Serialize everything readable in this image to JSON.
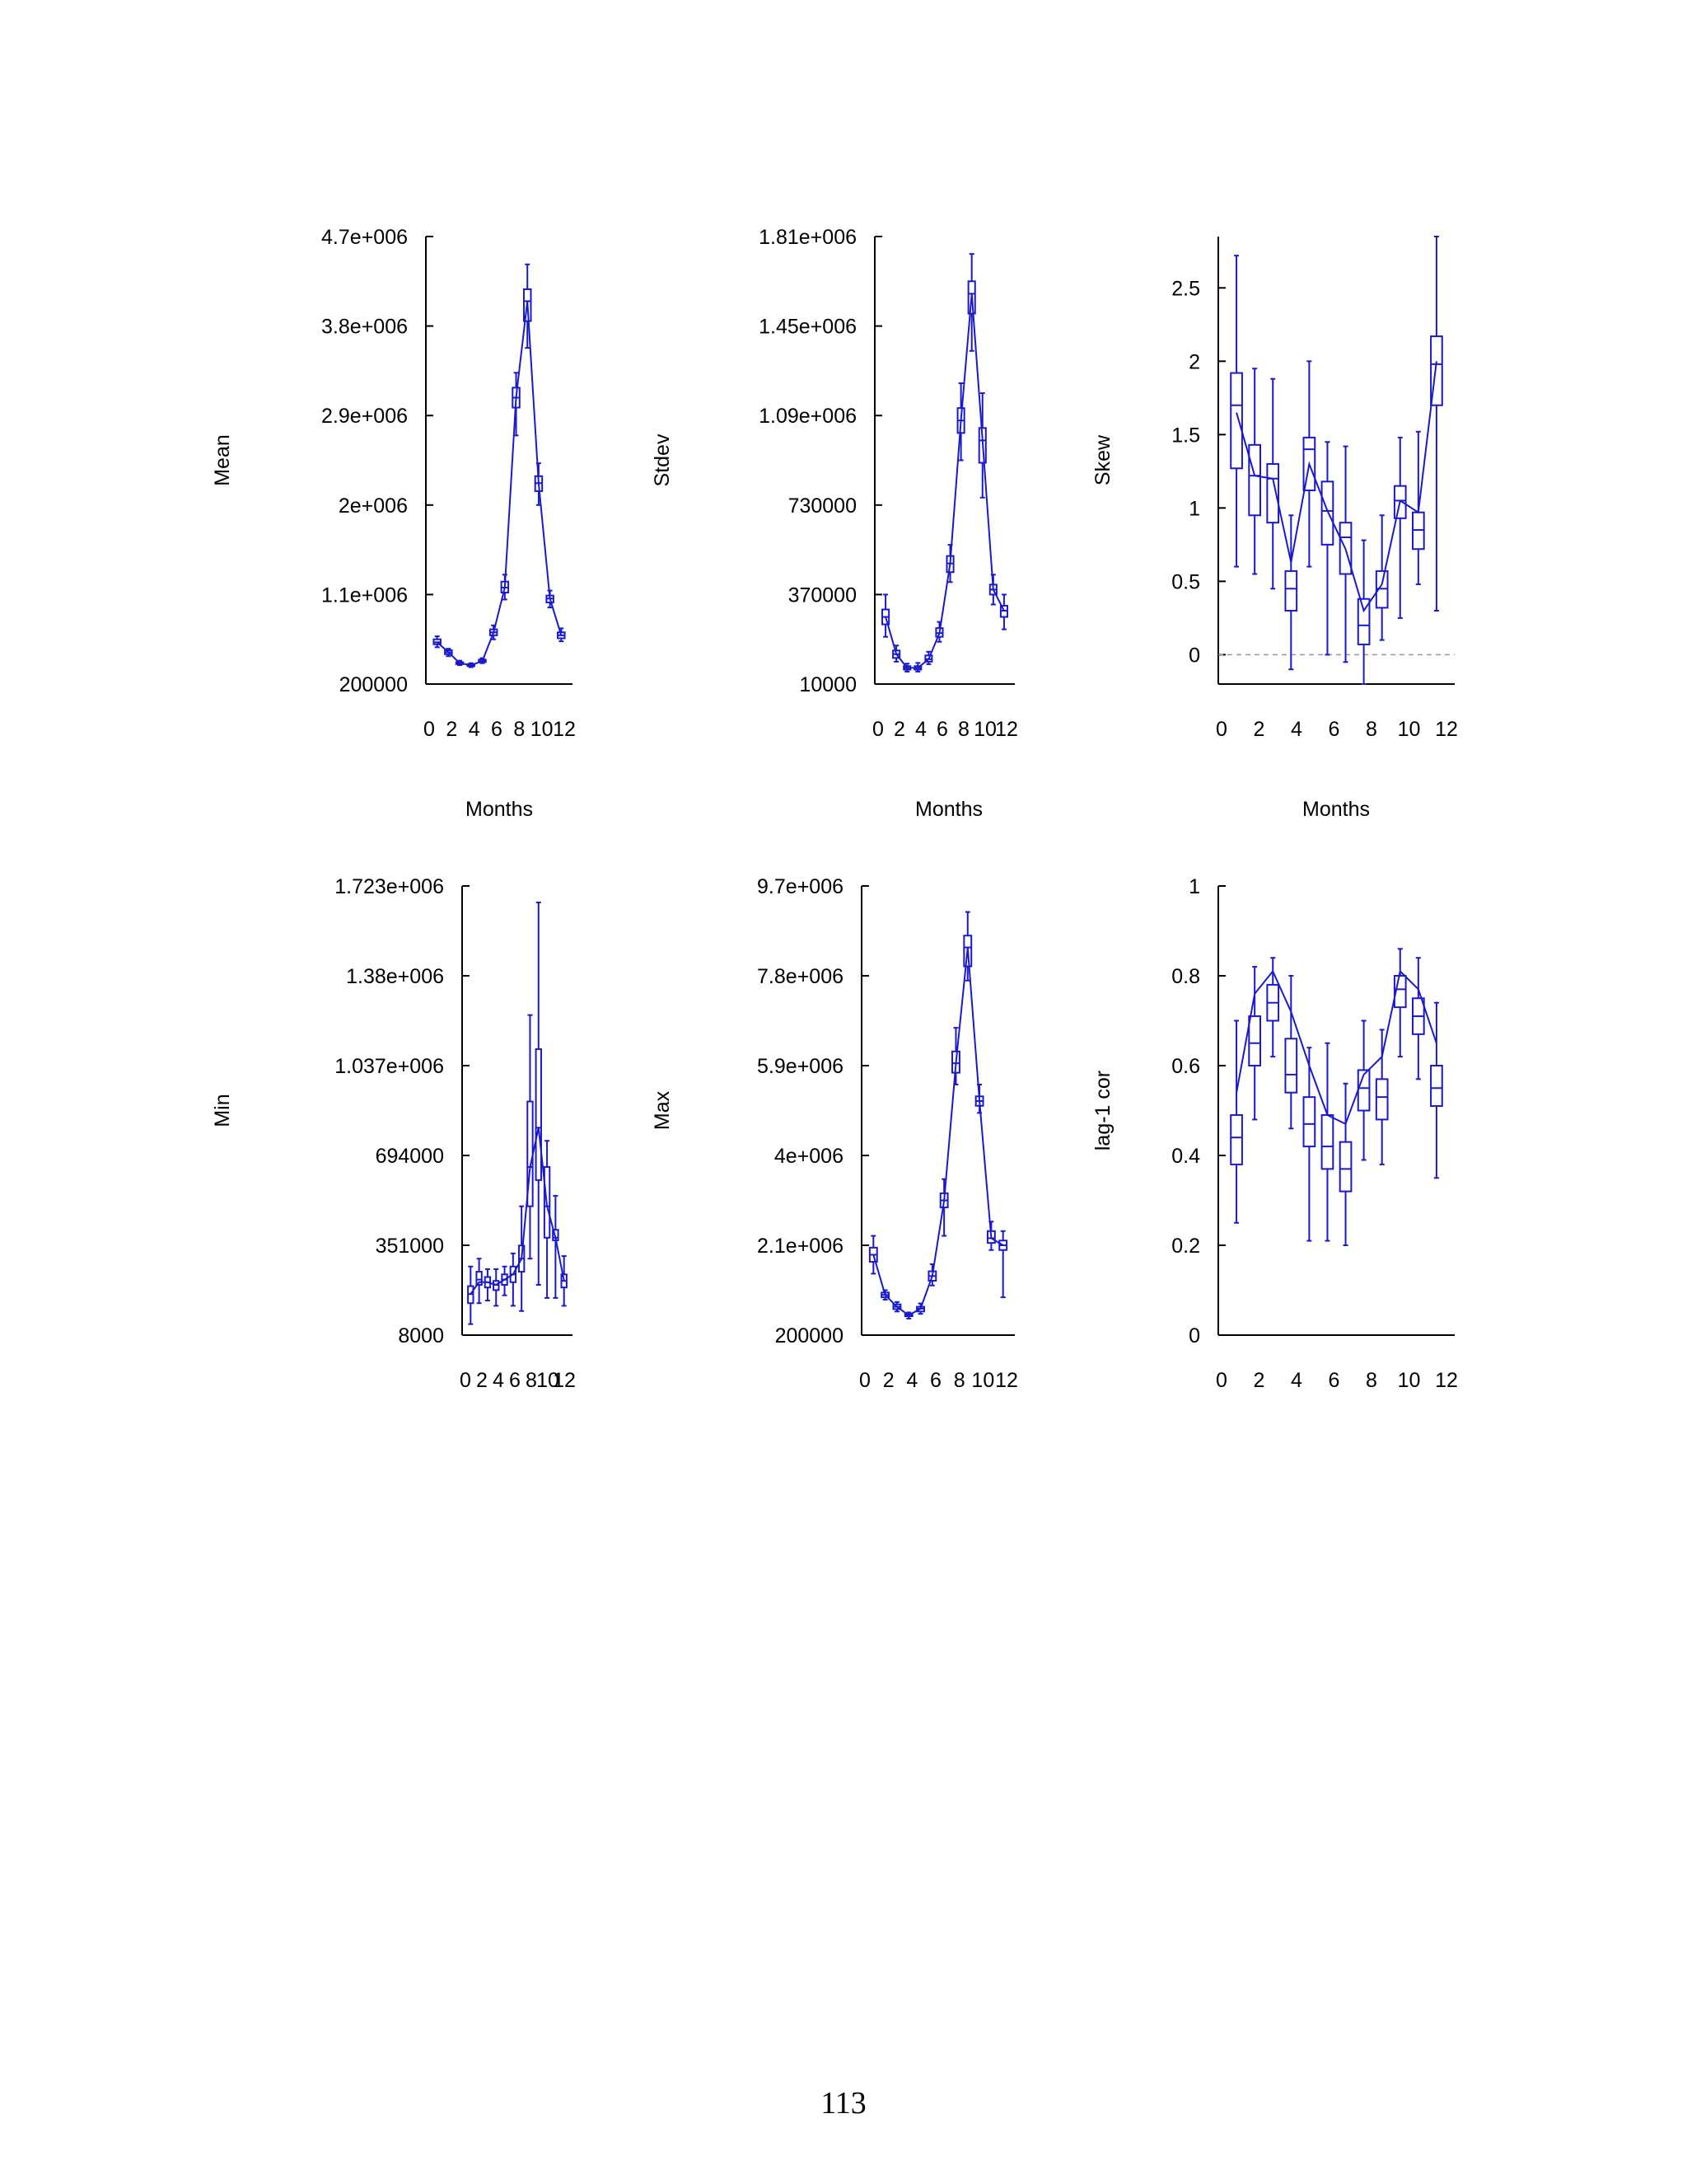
{
  "page": {
    "number": "113"
  },
  "chart_data": [
    {
      "type": "box",
      "ylabel": "Mean",
      "xlabel": "Months",
      "x_ticks": [
        "0",
        "2",
        "4",
        "6",
        "8",
        "10",
        "12"
      ],
      "xlim": [
        0,
        13
      ],
      "y_ticks": [
        "200000",
        "1.1e+006",
        "2e+006",
        "2.9e+006",
        "3.8e+006",
        "4.7e+006"
      ],
      "ylim": [
        200000,
        4700000
      ],
      "months": [
        1,
        2,
        3,
        4,
        5,
        6,
        7,
        8,
        9,
        10,
        11,
        12
      ],
      "box_color": "#1a1acc",
      "boxes": [
        {
          "whislo": 570000,
          "q1": 600000,
          "med": 620000,
          "q3": 650000,
          "whishi": 680000
        },
        {
          "whislo": 480000,
          "q1": 500000,
          "med": 520000,
          "q3": 540000,
          "whishi": 555000
        },
        {
          "whislo": 390000,
          "q1": 400000,
          "med": 410000,
          "q3": 420000,
          "whishi": 435000
        },
        {
          "whislo": 370000,
          "q1": 380000,
          "med": 390000,
          "q3": 400000,
          "whishi": 410000
        },
        {
          "whislo": 410000,
          "q1": 420000,
          "med": 430000,
          "q3": 445000,
          "whishi": 460000
        },
        {
          "whislo": 650000,
          "q1": 690000,
          "med": 720000,
          "q3": 750000,
          "whishi": 790000
        },
        {
          "whislo": 1050000,
          "q1": 1120000,
          "med": 1170000,
          "q3": 1230000,
          "whishi": 1300000
        },
        {
          "whislo": 2700000,
          "q1": 2980000,
          "med": 3080000,
          "q3": 3180000,
          "whishi": 3330000
        },
        {
          "whislo": 3580000,
          "q1": 3850000,
          "med": 4050000,
          "q3": 4170000,
          "whishi": 4420000
        },
        {
          "whislo": 2000000,
          "q1": 2140000,
          "med": 2220000,
          "q3": 2290000,
          "whishi": 2420000
        },
        {
          "whislo": 970000,
          "q1": 1020000,
          "med": 1060000,
          "q3": 1090000,
          "whishi": 1140000
        },
        {
          "whislo": 630000,
          "q1": 660000,
          "med": 690000,
          "q3": 720000,
          "whishi": 760000
        }
      ],
      "line": [
        620000,
        520000,
        410000,
        390000,
        430000,
        720000,
        1170000,
        3080000,
        4050000,
        2220000,
        1060000,
        690000
      ]
    },
    {
      "type": "box",
      "ylabel": "Stdev",
      "xlabel": "Months",
      "x_ticks": [
        "0",
        "2",
        "4",
        "6",
        "8",
        "10",
        "12"
      ],
      "xlim": [
        0,
        13
      ],
      "y_ticks": [
        "10000",
        "370000",
        "730000",
        "1.09e+006",
        "1.45e+006",
        "1.81e+006"
      ],
      "ylim": [
        10000,
        1810000
      ],
      "months": [
        1,
        2,
        3,
        4,
        5,
        6,
        7,
        8,
        9,
        10,
        11,
        12
      ],
      "box_color": "#1a1acc",
      "boxes": [
        {
          "whislo": 200000,
          "q1": 250000,
          "med": 280000,
          "q3": 310000,
          "whishi": 370000
        },
        {
          "whislo": 100000,
          "q1": 115000,
          "med": 130000,
          "q3": 145000,
          "whishi": 165000
        },
        {
          "whislo": 60000,
          "q1": 68000,
          "med": 75000,
          "q3": 82000,
          "whishi": 92000
        },
        {
          "whislo": 60000,
          "q1": 68000,
          "med": 75000,
          "q3": 82000,
          "whishi": 95000
        },
        {
          "whislo": 90000,
          "q1": 100000,
          "med": 110000,
          "q3": 125000,
          "whishi": 140000
        },
        {
          "whislo": 180000,
          "q1": 200000,
          "med": 215000,
          "q3": 235000,
          "whishi": 260000
        },
        {
          "whislo": 420000,
          "q1": 460000,
          "med": 495000,
          "q3": 525000,
          "whishi": 570000
        },
        {
          "whislo": 910000,
          "q1": 1020000,
          "med": 1070000,
          "q3": 1120000,
          "whishi": 1220000
        },
        {
          "whislo": 1350000,
          "q1": 1500000,
          "med": 1580000,
          "q3": 1630000,
          "whishi": 1740000
        },
        {
          "whislo": 760000,
          "q1": 900000,
          "med": 990000,
          "q3": 1040000,
          "whishi": 1180000
        },
        {
          "whislo": 330000,
          "q1": 370000,
          "med": 390000,
          "q3": 410000,
          "whishi": 450000
        },
        {
          "whislo": 230000,
          "q1": 280000,
          "med": 305000,
          "q3": 325000,
          "whishi": 370000
        }
      ],
      "line": [
        280000,
        130000,
        75000,
        75000,
        110000,
        215000,
        495000,
        1070000,
        1580000,
        990000,
        390000,
        305000
      ]
    },
    {
      "type": "box",
      "ylabel": "Skew",
      "xlabel": "Months",
      "x_ticks": [
        "0",
        "2",
        "4",
        "6",
        "8",
        "10",
        "12"
      ],
      "xlim": [
        0,
        13
      ],
      "y_ticks": [
        "0",
        "0.5",
        "1",
        "1.5",
        "2",
        "2.5"
      ],
      "ylim": [
        -0.2,
        2.85
      ],
      "months": [
        1,
        2,
        3,
        4,
        5,
        6,
        7,
        8,
        9,
        10,
        11,
        12
      ],
      "box_color": "#1a1acc",
      "reference_line": 0,
      "boxes": [
        {
          "whislo": 0.6,
          "q1": 1.27,
          "med": 1.7,
          "q3": 1.92,
          "whishi": 2.72
        },
        {
          "whislo": 0.55,
          "q1": 0.95,
          "med": 1.22,
          "q3": 1.43,
          "whishi": 1.95
        },
        {
          "whislo": 0.45,
          "q1": 0.9,
          "med": 1.2,
          "q3": 1.3,
          "whishi": 1.88
        },
        {
          "whislo": -0.1,
          "q1": 0.3,
          "med": 0.45,
          "q3": 0.57,
          "whishi": 0.95
        },
        {
          "whislo": 0.6,
          "q1": 1.12,
          "med": 1.4,
          "q3": 1.48,
          "whishi": 2.0
        },
        {
          "whislo": 0.0,
          "q1": 0.75,
          "med": 0.98,
          "q3": 1.18,
          "whishi": 1.45
        },
        {
          "whislo": -0.05,
          "q1": 0.55,
          "med": 0.8,
          "q3": 0.9,
          "whishi": 1.42
        },
        {
          "whislo": -0.2,
          "q1": 0.07,
          "med": 0.2,
          "q3": 0.38,
          "whishi": 0.78
        },
        {
          "whislo": 0.1,
          "q1": 0.32,
          "med": 0.45,
          "q3": 0.57,
          "whishi": 0.95
        },
        {
          "whislo": 0.25,
          "q1": 0.93,
          "med": 1.05,
          "q3": 1.15,
          "whishi": 1.48
        },
        {
          "whislo": 0.48,
          "q1": 0.72,
          "med": 0.85,
          "q3": 0.97,
          "whishi": 1.52
        },
        {
          "whislo": 0.3,
          "q1": 1.7,
          "med": 1.98,
          "q3": 2.17,
          "whishi": 2.85
        }
      ],
      "line": [
        1.65,
        1.22,
        1.2,
        0.63,
        1.3,
        0.98,
        0.72,
        0.3,
        0.48,
        1.05,
        0.97,
        2.0
      ]
    },
    {
      "type": "box",
      "ylabel": "Min",
      "xlabel": "",
      "x_ticks": [
        "0",
        "2",
        "4",
        "6",
        "8",
        "10",
        "12"
      ],
      "xlim": [
        0,
        13
      ],
      "y_ticks": [
        "8000",
        "351000",
        "694000",
        "1.037e+006",
        "1.38e+006",
        "1.723e+006"
      ],
      "ylim": [
        8000,
        1723000
      ],
      "months": [
        1,
        2,
        3,
        4,
        5,
        6,
        7,
        8,
        9,
        10,
        11,
        12
      ],
      "box_color": "#1a1acc",
      "boxes": [
        {
          "whislo": 50000,
          "q1": 130000,
          "med": 165000,
          "q3": 195000,
          "whishi": 270000
        },
        {
          "whislo": 130000,
          "q1": 200000,
          "med": 220000,
          "q3": 250000,
          "whishi": 300000
        },
        {
          "whislo": 140000,
          "q1": 190000,
          "med": 210000,
          "q3": 230000,
          "whishi": 260000
        },
        {
          "whislo": 120000,
          "q1": 180000,
          "med": 200000,
          "q3": 215000,
          "whishi": 260000
        },
        {
          "whislo": 160000,
          "q1": 200000,
          "med": 220000,
          "q3": 240000,
          "whishi": 270000
        },
        {
          "whislo": 120000,
          "q1": 210000,
          "med": 240000,
          "q3": 270000,
          "whishi": 320000
        },
        {
          "whislo": 100000,
          "q1": 250000,
          "med": 300000,
          "q3": 350000,
          "whishi": 500000
        },
        {
          "whislo": 300000,
          "q1": 500000,
          "med": 650000,
          "q3": 900000,
          "whishi": 1230000
        },
        {
          "whislo": 200000,
          "q1": 600000,
          "med": 800000,
          "q3": 1100000,
          "whishi": 1660000
        },
        {
          "whislo": 150000,
          "q1": 380000,
          "med": 500000,
          "q3": 650000,
          "whishi": 750000
        },
        {
          "whislo": 150000,
          "q1": 370000,
          "med": 380000,
          "q3": 410000,
          "whishi": 540000
        },
        {
          "whislo": 120000,
          "q1": 190000,
          "med": 215000,
          "q3": 240000,
          "whishi": 310000
        }
      ],
      "line": [
        165000,
        210000,
        210000,
        200000,
        220000,
        240000,
        300000,
        650000,
        800000,
        500000,
        380000,
        215000
      ]
    },
    {
      "type": "box",
      "ylabel": "Max",
      "xlabel": "",
      "x_ticks": [
        "0",
        "2",
        "4",
        "6",
        "8",
        "10",
        "12"
      ],
      "xlim": [
        0,
        13
      ],
      "y_ticks": [
        "200000",
        "2.1e+006",
        "4e+006",
        "5.9e+006",
        "7.8e+006",
        "9.7e+006"
      ],
      "ylim": [
        200000,
        9700000
      ],
      "months": [
        1,
        2,
        3,
        4,
        5,
        6,
        7,
        8,
        9,
        10,
        11,
        12
      ],
      "box_color": "#1a1acc",
      "boxes": [
        {
          "whislo": 1500000,
          "q1": 1750000,
          "med": 1900000,
          "q3": 2050000,
          "whishi": 2300000
        },
        {
          "whislo": 950000,
          "q1": 1000000,
          "med": 1050000,
          "q3": 1100000,
          "whishi": 1150000
        },
        {
          "whislo": 700000,
          "q1": 750000,
          "med": 800000,
          "q3": 850000,
          "whishi": 900000
        },
        {
          "whislo": 550000,
          "q1": 600000,
          "med": 620000,
          "q3": 650000,
          "whishi": 680000
        },
        {
          "whislo": 650000,
          "q1": 700000,
          "med": 760000,
          "q3": 800000,
          "whishi": 870000
        },
        {
          "whislo": 1250000,
          "q1": 1350000,
          "med": 1450000,
          "q3": 1550000,
          "whishi": 1700000
        },
        {
          "whislo": 2300000,
          "q1": 2900000,
          "med": 3050000,
          "q3": 3200000,
          "whishi": 3500000
        },
        {
          "whislo": 5500000,
          "q1": 5750000,
          "med": 5950000,
          "q3": 6200000,
          "whishi": 6700000
        },
        {
          "whislo": 7700000,
          "q1": 8000000,
          "med": 8400000,
          "q3": 8650000,
          "whishi": 9150000
        },
        {
          "whislo": 4900000,
          "q1": 5050000,
          "med": 5150000,
          "q3": 5250000,
          "whishi": 5500000
        },
        {
          "whislo": 2000000,
          "q1": 2150000,
          "med": 2250000,
          "q3": 2400000,
          "whishi": 2600000
        },
        {
          "whislo": 1000000,
          "q1": 2000000,
          "med": 2100000,
          "q3": 2200000,
          "whishi": 2400000
        }
      ],
      "line": [
        1900000,
        1050000,
        800000,
        620000,
        760000,
        1450000,
        3050000,
        5950000,
        8400000,
        5150000,
        2250000,
        2100000
      ]
    },
    {
      "type": "box",
      "ylabel": "lag-1 cor",
      "xlabel": "",
      "x_ticks": [
        "0",
        "2",
        "4",
        "6",
        "8",
        "10",
        "12"
      ],
      "xlim": [
        0,
        13
      ],
      "y_ticks": [
        "0",
        "0.2",
        "0.4",
        "0.6",
        "0.8",
        "1"
      ],
      "ylim": [
        0,
        1
      ],
      "months": [
        1,
        2,
        3,
        4,
        5,
        6,
        7,
        8,
        9,
        10,
        11,
        12
      ],
      "box_color": "#1a1acc",
      "boxes": [
        {
          "whislo": 0.25,
          "q1": 0.38,
          "med": 0.44,
          "q3": 0.49,
          "whishi": 0.7
        },
        {
          "whislo": 0.48,
          "q1": 0.6,
          "med": 0.65,
          "q3": 0.71,
          "whishi": 0.82
        },
        {
          "whislo": 0.62,
          "q1": 0.7,
          "med": 0.74,
          "q3": 0.78,
          "whishi": 0.84
        },
        {
          "whislo": 0.46,
          "q1": 0.54,
          "med": 0.58,
          "q3": 0.66,
          "whishi": 0.8
        },
        {
          "whislo": 0.21,
          "q1": 0.42,
          "med": 0.47,
          "q3": 0.53,
          "whishi": 0.64
        },
        {
          "whislo": 0.21,
          "q1": 0.37,
          "med": 0.42,
          "q3": 0.49,
          "whishi": 0.65
        },
        {
          "whislo": 0.2,
          "q1": 0.32,
          "med": 0.37,
          "q3": 0.43,
          "whishi": 0.56
        },
        {
          "whislo": 0.39,
          "q1": 0.5,
          "med": 0.55,
          "q3": 0.59,
          "whishi": 0.7
        },
        {
          "whislo": 0.38,
          "q1": 0.48,
          "med": 0.53,
          "q3": 0.57,
          "whishi": 0.68
        },
        {
          "whislo": 0.62,
          "q1": 0.73,
          "med": 0.77,
          "q3": 0.8,
          "whishi": 0.86
        },
        {
          "whislo": 0.57,
          "q1": 0.67,
          "med": 0.71,
          "q3": 0.75,
          "whishi": 0.84
        },
        {
          "whislo": 0.35,
          "q1": 0.51,
          "med": 0.55,
          "q3": 0.6,
          "whishi": 0.74
        }
      ],
      "line": [
        0.54,
        0.76,
        0.81,
        0.72,
        0.6,
        0.49,
        0.47,
        0.58,
        0.62,
        0.81,
        0.77,
        0.65
      ]
    }
  ]
}
